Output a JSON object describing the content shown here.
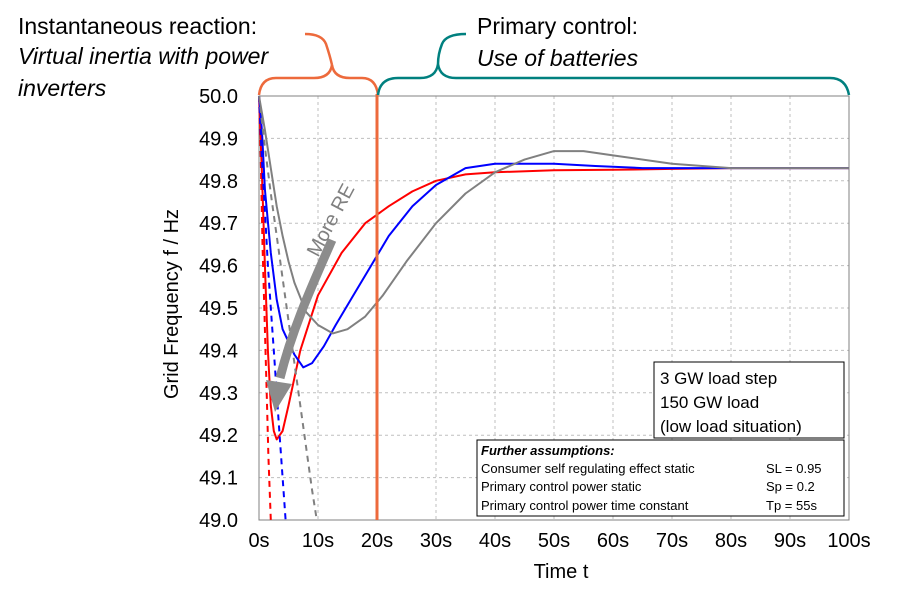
{
  "annotations": {
    "instant": {
      "line1": "Instantaneous reaction:",
      "line2": "Virtual inertia with power",
      "line3": "inverters"
    },
    "primary": {
      "line1": "Primary control:",
      "line2": "Use of batteries"
    },
    "more_re": "More RE"
  },
  "info_box": {
    "line1": "3 GW load step",
    "line2": "150 GW load",
    "line3": "(low load situation)"
  },
  "assumptions": {
    "title": "Further assumptions:",
    "rows": [
      {
        "label": "Consumer self regulating effect static",
        "value": "SL = 0.95"
      },
      {
        "label": "Primary control power static",
        "value": "Sp = 0.2"
      },
      {
        "label": "Primary control power time constant",
        "value": "Tp = 55s"
      }
    ]
  },
  "colors": {
    "red": "#ff0000",
    "blue": "#0000ff",
    "gray": "#808080",
    "orange_brace": "#ed6a3c",
    "teal_brace": "#00807f",
    "grid": "#bfbfbf"
  },
  "chart_data": {
    "type": "line",
    "xlabel": "Time t",
    "ylabel": "Grid Frequency f / Hz",
    "xlim": [
      0,
      100
    ],
    "ylim": [
      49.0,
      50.0
    ],
    "x_ticks": [
      "0s",
      "10s",
      "20s",
      "30s",
      "40s",
      "50s",
      "60s",
      "70s",
      "80s",
      "90s",
      "100s"
    ],
    "y_ticks": [
      "50.0",
      "49.9",
      "49.8",
      "49.7",
      "49.6",
      "49.5",
      "49.4",
      "49.3",
      "49.2",
      "49.1",
      "49.0"
    ],
    "grid": true,
    "vertical_marker_x": 20,
    "series": [
      {
        "color": "#ff0000",
        "style": "solid",
        "points": [
          [
            0,
            50.0
          ],
          [
            0.5,
            49.82
          ],
          [
            1,
            49.6
          ],
          [
            1.5,
            49.4
          ],
          [
            2,
            49.27
          ],
          [
            2.5,
            49.21
          ],
          [
            3,
            49.19
          ],
          [
            4,
            49.21
          ],
          [
            5,
            49.27
          ],
          [
            7,
            49.4
          ],
          [
            10,
            49.53
          ],
          [
            14,
            49.63
          ],
          [
            18,
            49.7
          ],
          [
            22,
            49.74
          ],
          [
            26,
            49.775
          ],
          [
            30,
            49.8
          ],
          [
            35,
            49.815
          ],
          [
            40,
            49.82
          ],
          [
            50,
            49.825
          ],
          [
            60,
            49.826
          ],
          [
            70,
            49.828
          ],
          [
            80,
            49.83
          ],
          [
            90,
            49.83
          ],
          [
            100,
            49.83
          ]
        ]
      },
      {
        "color": "#0000ff",
        "style": "solid",
        "points": [
          [
            0,
            50.0
          ],
          [
            0.5,
            49.92
          ],
          [
            1,
            49.78
          ],
          [
            2,
            49.63
          ],
          [
            3,
            49.52
          ],
          [
            4,
            49.45
          ],
          [
            6,
            49.39
          ],
          [
            7.5,
            49.36
          ],
          [
            9,
            49.37
          ],
          [
            11,
            49.41
          ],
          [
            13,
            49.46
          ],
          [
            16,
            49.53
          ],
          [
            19,
            49.6
          ],
          [
            22,
            49.67
          ],
          [
            26,
            49.74
          ],
          [
            30,
            49.79
          ],
          [
            35,
            49.83
          ],
          [
            40,
            49.84
          ],
          [
            50,
            49.84
          ],
          [
            57,
            49.835
          ],
          [
            65,
            49.83
          ],
          [
            80,
            49.83
          ],
          [
            100,
            49.83
          ]
        ]
      },
      {
        "color": "#808080",
        "style": "solid",
        "points": [
          [
            0,
            50.0
          ],
          [
            1,
            49.92
          ],
          [
            2,
            49.83
          ],
          [
            3,
            49.74
          ],
          [
            4,
            49.67
          ],
          [
            5,
            49.61
          ],
          [
            6,
            49.56
          ],
          [
            8,
            49.49
          ],
          [
            10,
            49.46
          ],
          [
            12.5,
            49.44
          ],
          [
            15,
            49.45
          ],
          [
            18,
            49.48
          ],
          [
            21,
            49.53
          ],
          [
            25,
            49.61
          ],
          [
            30,
            49.7
          ],
          [
            35,
            49.77
          ],
          [
            40,
            49.82
          ],
          [
            45,
            49.85
          ],
          [
            50,
            49.87
          ],
          [
            55,
            49.87
          ],
          [
            60,
            49.86
          ],
          [
            70,
            49.84
          ],
          [
            80,
            49.83
          ],
          [
            90,
            49.83
          ],
          [
            100,
            49.83
          ]
        ]
      },
      {
        "color": "#ff0000",
        "style": "dashed",
        "points": [
          [
            0,
            50.0
          ],
          [
            0.3,
            49.85
          ],
          [
            0.6,
            49.65
          ],
          [
            1,
            49.45
          ],
          [
            1.3,
            49.3
          ],
          [
            1.6,
            49.15
          ],
          [
            2,
            49.0
          ]
        ]
      },
      {
        "color": "#0000ff",
        "style": "dashed",
        "points": [
          [
            0,
            50.0
          ],
          [
            0.5,
            49.85
          ],
          [
            1,
            49.73
          ],
          [
            1.5,
            49.6
          ],
          [
            2,
            49.5
          ],
          [
            2.5,
            49.4
          ],
          [
            3,
            49.3
          ],
          [
            3.5,
            49.2
          ],
          [
            4,
            49.1
          ],
          [
            4.5,
            49.0
          ]
        ]
      },
      {
        "color": "#808080",
        "style": "dashed",
        "points": [
          [
            0,
            50.0
          ],
          [
            1,
            49.88
          ],
          [
            2,
            49.77
          ],
          [
            3,
            49.67
          ],
          [
            4,
            49.57
          ],
          [
            5,
            49.47
          ],
          [
            6,
            49.37
          ],
          [
            7,
            49.27
          ],
          [
            8,
            49.17
          ],
          [
            9,
            49.07
          ],
          [
            9.8,
            49.0
          ]
        ]
      }
    ]
  }
}
